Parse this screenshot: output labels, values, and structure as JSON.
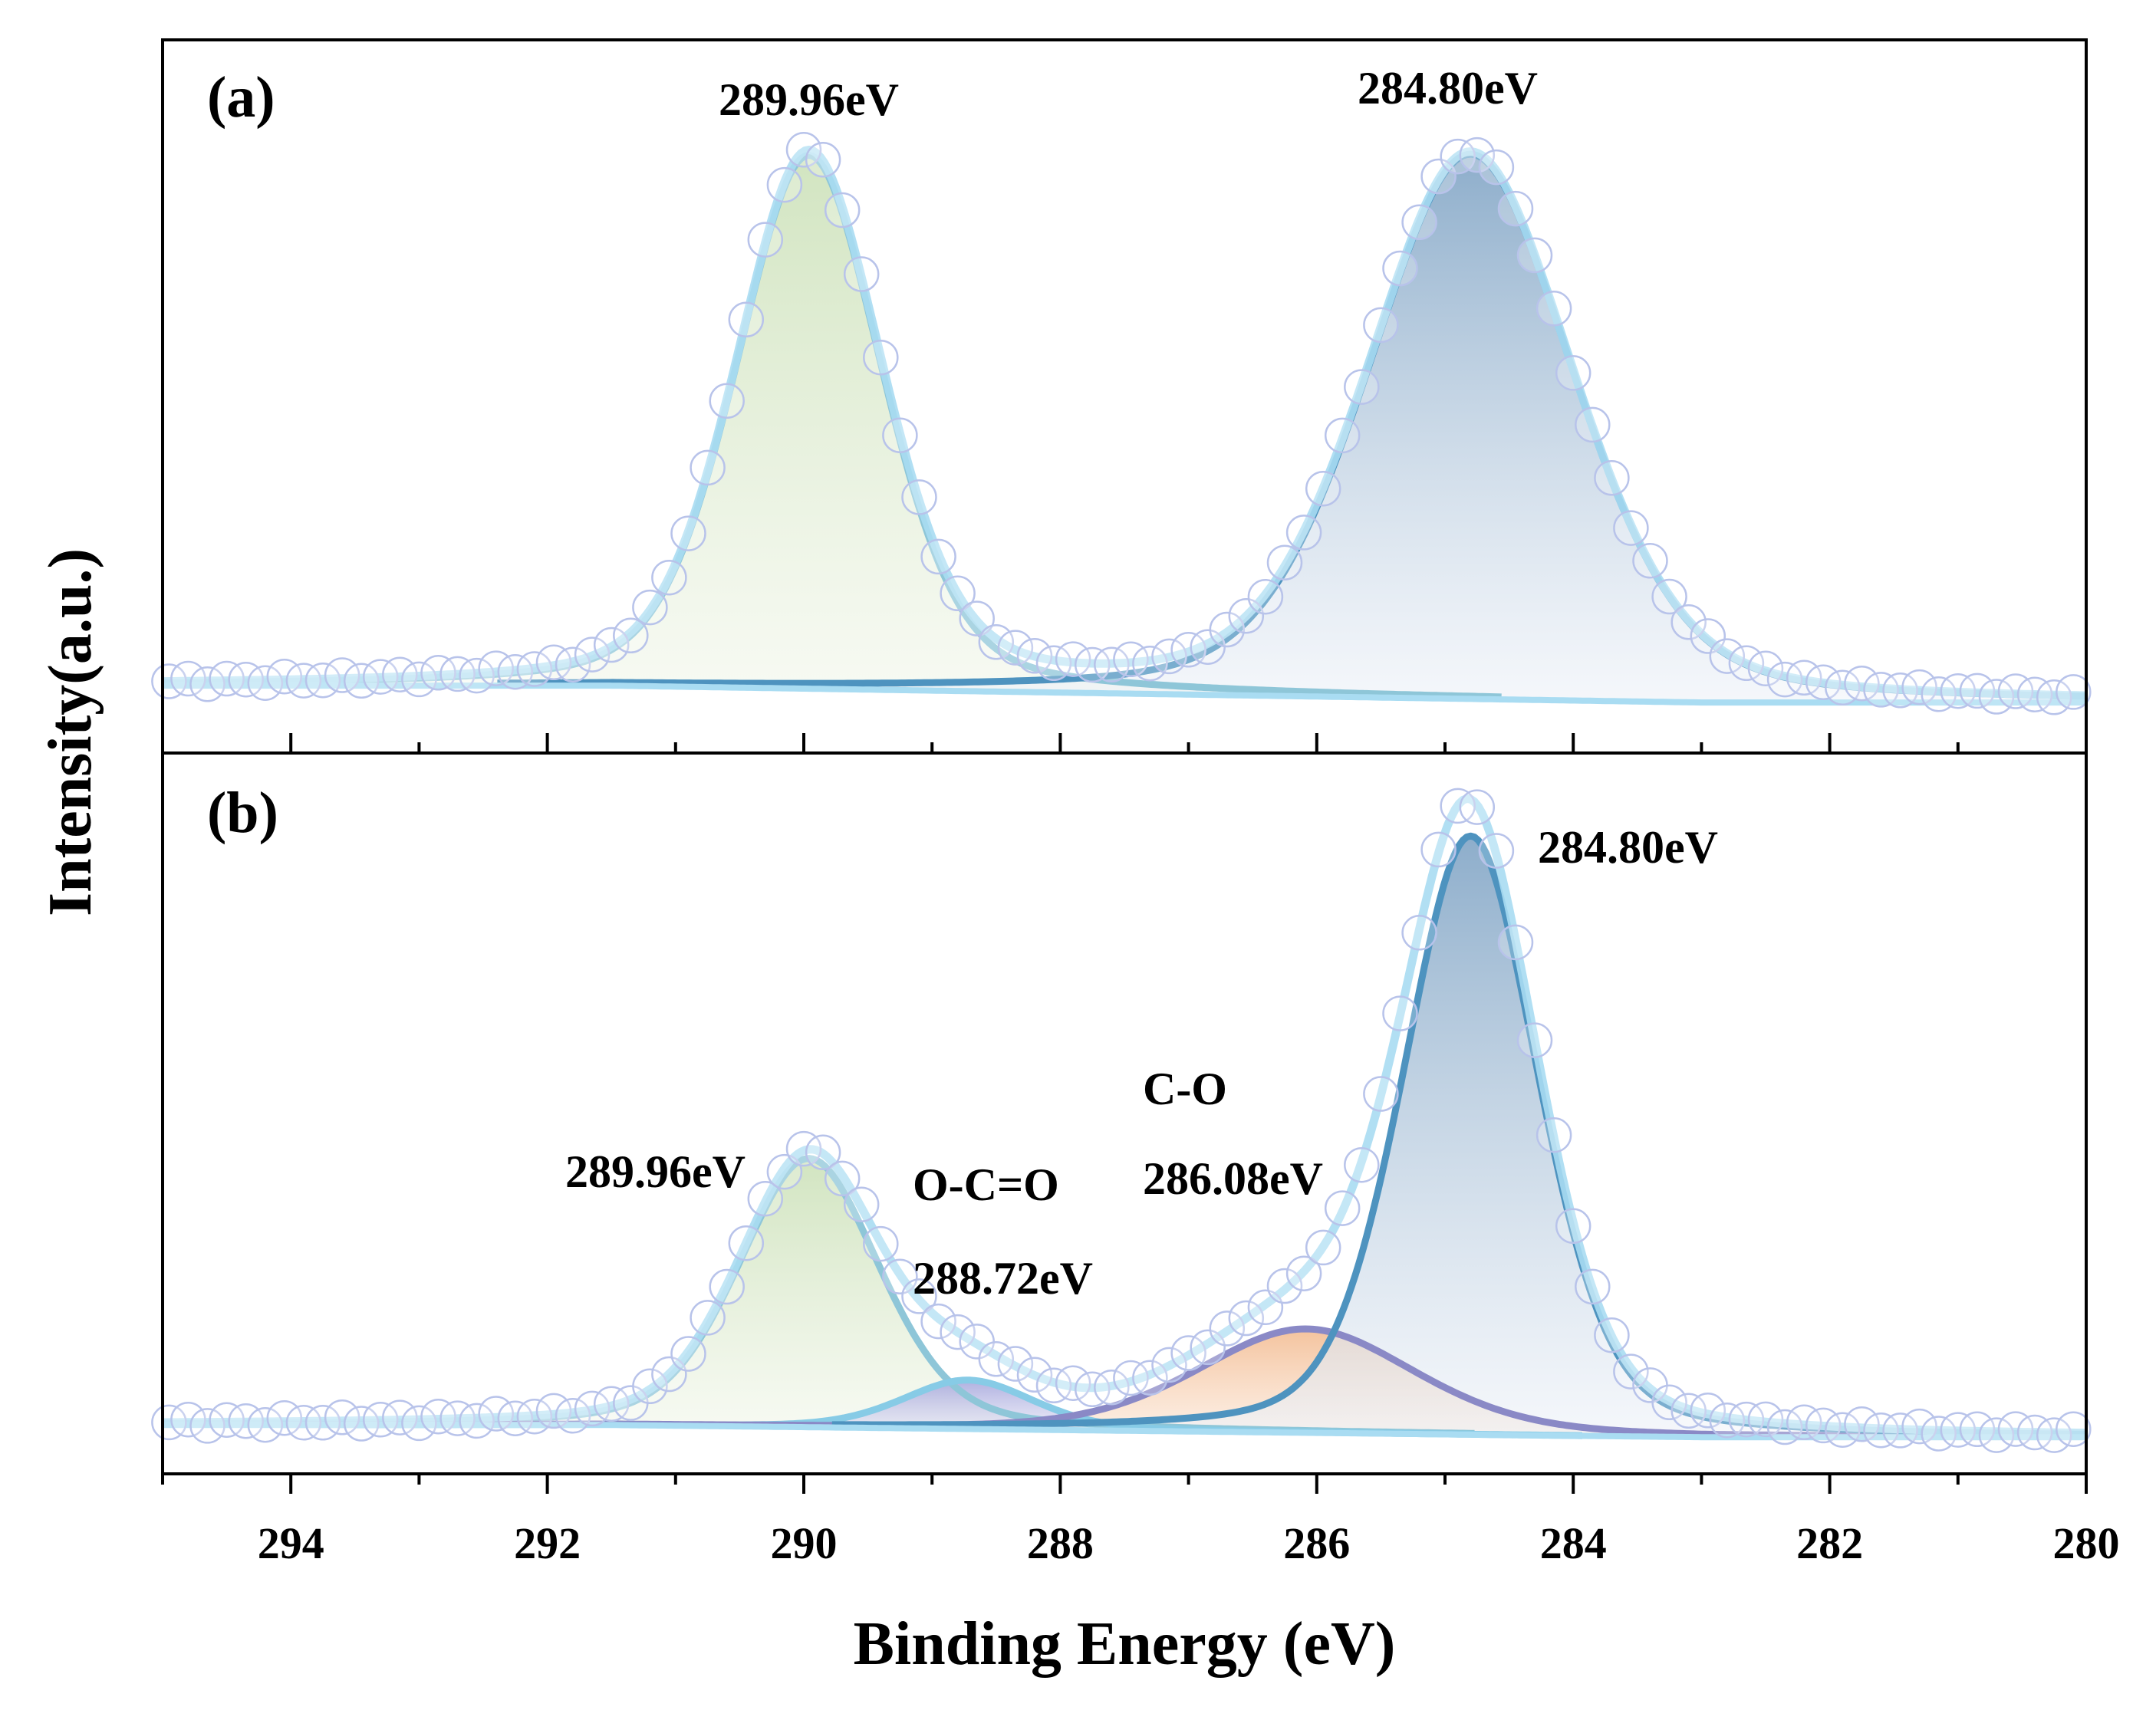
{
  "chart_data": {
    "type": "line",
    "title": "",
    "xlabel": "Binding Energy (eV)",
    "ylabel": "Intensity(a.u.)",
    "xlim": [
      295,
      280
    ],
    "x_reversed": true,
    "x_ticks": [
      294,
      292,
      290,
      288,
      286,
      284,
      282,
      280
    ],
    "y_ticks_shown": false,
    "colors": {
      "data_circle": "#b8c3ea",
      "envelope": "#a9dcf2",
      "baseline": "#a9dcf2",
      "peak_289": "#8ec6d8",
      "peak_284": "#4e93bf",
      "peak_288": "#87cbe6",
      "peak_286": "#8a89c6",
      "fill_289": "#d8e8c8",
      "fill_284": "#8aaccc",
      "fill_288": "#a9a9dc",
      "fill_286": "#f4c29a",
      "frame": "#000000"
    },
    "panels": [
      {
        "panel_label": "(a)",
        "ylim": [
          -0.12,
          1.15
        ],
        "baseline": [
          [
            295,
            0.0
          ],
          [
            291.5,
            0.0
          ],
          [
            283.0,
            -0.03
          ],
          [
            280,
            -0.03
          ]
        ],
        "peaks": [
          {
            "name": "C 1s 289.96",
            "label": "289.96eV",
            "center": 289.96,
            "height": 0.95,
            "fwhm": 1.35,
            "fill": "fill_289",
            "line": "peak_289"
          },
          {
            "name": "C 1s 284.80",
            "label": "284.80eV",
            "center": 284.8,
            "height": 0.97,
            "fwhm": 1.9,
            "fill": "fill_284",
            "line": "peak_284"
          }
        ],
        "data_points_x_range": [
          295,
          280
        ],
        "data_points_step": 0.15
      },
      {
        "panel_label": "(b)",
        "ylim": [
          -0.08,
          1.1
        ],
        "baseline": [
          [
            295,
            0.0
          ],
          [
            291.5,
            0.0
          ],
          [
            283.0,
            -0.02
          ],
          [
            280,
            -0.02
          ]
        ],
        "peaks": [
          {
            "name": "C 1s 289.96",
            "label": "289.96eV",
            "center": 289.96,
            "height": 0.44,
            "fwhm": 1.3,
            "fill": "fill_289",
            "line": "peak_289"
          },
          {
            "name": "O-C=O",
            "label": "288.72eV",
            "group": "O-C=O",
            "center": 288.72,
            "height": 0.08,
            "fwhm": 1.2,
            "fill": "fill_288",
            "line": "peak_288"
          },
          {
            "name": "C-O",
            "label": "286.08eV",
            "group": "C-O",
            "center": 286.08,
            "height": 0.17,
            "fwhm": 2.0,
            "fill": "fill_286",
            "line": "peak_286"
          },
          {
            "name": "C 1s 284.80",
            "label": "284.80eV",
            "center": 284.8,
            "height": 0.98,
            "fwhm": 1.25,
            "fill": "fill_284",
            "line": "peak_284"
          }
        ],
        "data_points_x_range": [
          295,
          280
        ],
        "data_points_step": 0.15
      }
    ]
  },
  "annotations": {
    "a_289": "289.96eV",
    "a_284": "284.80eV",
    "b_289": "289.96eV",
    "b_284": "284.80eV",
    "b_oco_group": "O-C=O",
    "b_oco_energy": "288.72eV",
    "b_co_group": "C-O",
    "b_co_energy": "286.08eV"
  }
}
